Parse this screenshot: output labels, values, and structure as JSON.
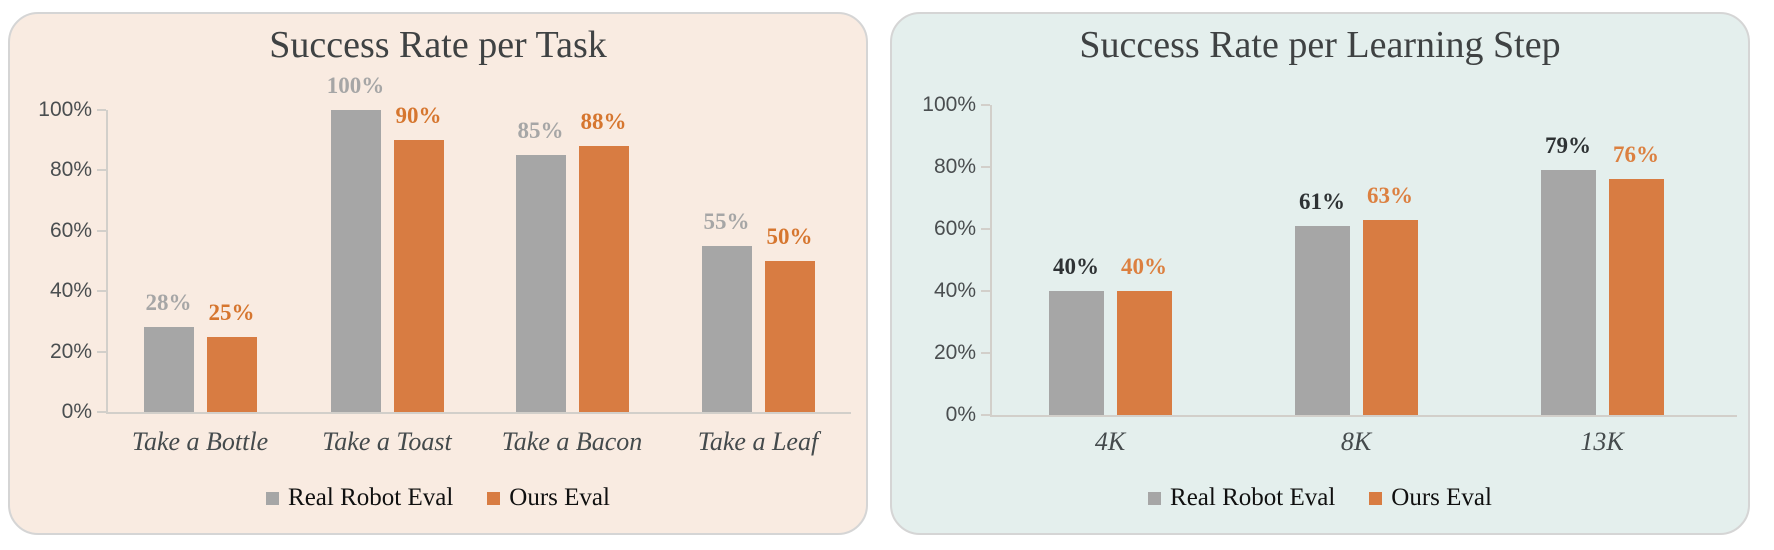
{
  "colors": {
    "page_bg": "#FFFFFF",
    "panel_border": "#D5D5D5",
    "series_gray": "#A6A6A6",
    "series_orange": "#D87C42",
    "title_text": "#3F4243",
    "tick_text": "#4A4E50",
    "category_text": "#444A4C",
    "legend_text": "#101010",
    "axis_line": "#D2CFCA"
  },
  "chart_data": [
    {
      "type": "bar",
      "title": "Success Rate per Task",
      "panel_bg": "#F9EBE1",
      "categories": [
        "Take a Bottle",
        "Take a Toast",
        "Take a Bacon",
        "Take a Leaf"
      ],
      "series": [
        {
          "name": "Real Robot Eval",
          "values": [
            28,
            100,
            85,
            55
          ],
          "color": "#A6A6A6",
          "label_color": "#A6A6A6"
        },
        {
          "name": "Ours Eval",
          "values": [
            25,
            90,
            88,
            50
          ],
          "color": "#D87C42",
          "label_color": "#D6762F"
        }
      ],
      "data_labels": [
        "28%",
        "100%",
        "85%",
        "55%",
        "25%",
        "90%",
        "88%",
        "50%"
      ],
      "y_ticks": [
        "0%",
        "20%",
        "40%",
        "60%",
        "80%",
        "100%"
      ],
      "ylim": [
        0,
        100
      ],
      "grid": false,
      "legend_position": "bottom"
    },
    {
      "type": "bar",
      "title": "Success Rate per Learning Step",
      "panel_bg": "#E4EFED",
      "categories": [
        "4K",
        "8K",
        "13K"
      ],
      "series": [
        {
          "name": "Real Robot Eval",
          "values": [
            40,
            61,
            79
          ],
          "color": "#A6A6A6",
          "label_color": "#2E3234"
        },
        {
          "name": "Ours Eval",
          "values": [
            40,
            63,
            76
          ],
          "color": "#D87C42",
          "label_color": "#DC8040"
        }
      ],
      "data_labels": [
        "40%",
        "61%",
        "79%",
        "40%",
        "63%",
        "76%"
      ],
      "y_ticks": [
        "0%",
        "20%",
        "40%",
        "60%",
        "80%",
        "100%"
      ],
      "ylim": [
        0,
        100
      ],
      "grid": false,
      "legend_position": "bottom"
    }
  ]
}
